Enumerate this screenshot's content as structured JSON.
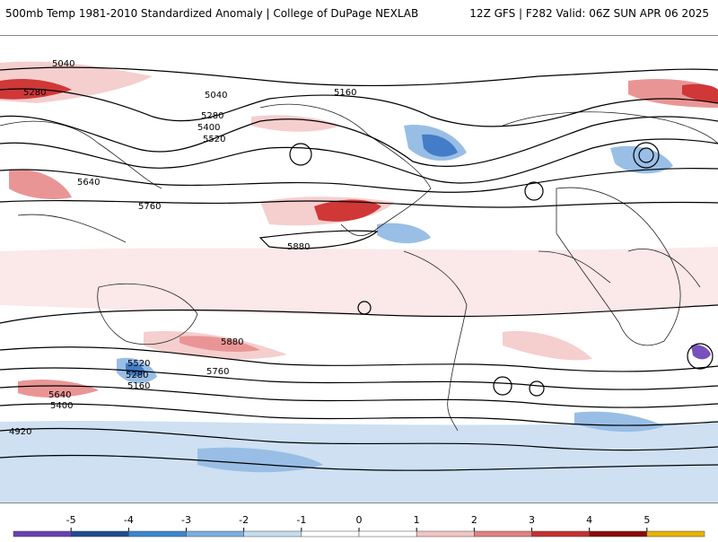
{
  "header": {
    "title": "500mb Temp 1981-2010 Standardized Anomaly | College of DuPage NEXLAB",
    "run_info": "12Z GFS | F282 Valid: 06Z SUN APR 06 2025"
  },
  "map": {
    "contour_labels": [
      "5040",
      "5280",
      "5040",
      "5160",
      "5280",
      "5400",
      "5520",
      "5640",
      "5760",
      "5880",
      "4920",
      "5160",
      "5280",
      "5400",
      "5520",
      "5640",
      "5760",
      "5880"
    ],
    "colors": {
      "contour": "#000000",
      "coastline": "#222222",
      "warm_light": "#f4c9c9",
      "warm_mid": "#e88a8a",
      "warm_strong": "#cc2222",
      "cool_light": "#c9ddf1",
      "cool_mid": "#8fb8e3",
      "cool_strong": "#2f6fc1",
      "extreme_cold": "#6a3fb5"
    }
  },
  "colorbar": {
    "ticks": [
      "-5",
      "-4",
      "-3",
      "-2",
      "-1",
      "0",
      "1",
      "2",
      "3",
      "4",
      "5"
    ],
    "colors": [
      "#6a3fb5",
      "#1f4c8f",
      "#3a86cf",
      "#7ab0e0",
      "#c5dcf0",
      "#ffffff",
      "#ffffff",
      "#f3c4c4",
      "#e08080",
      "#c53030",
      "#8b0b0b",
      "#e8b200"
    ]
  }
}
